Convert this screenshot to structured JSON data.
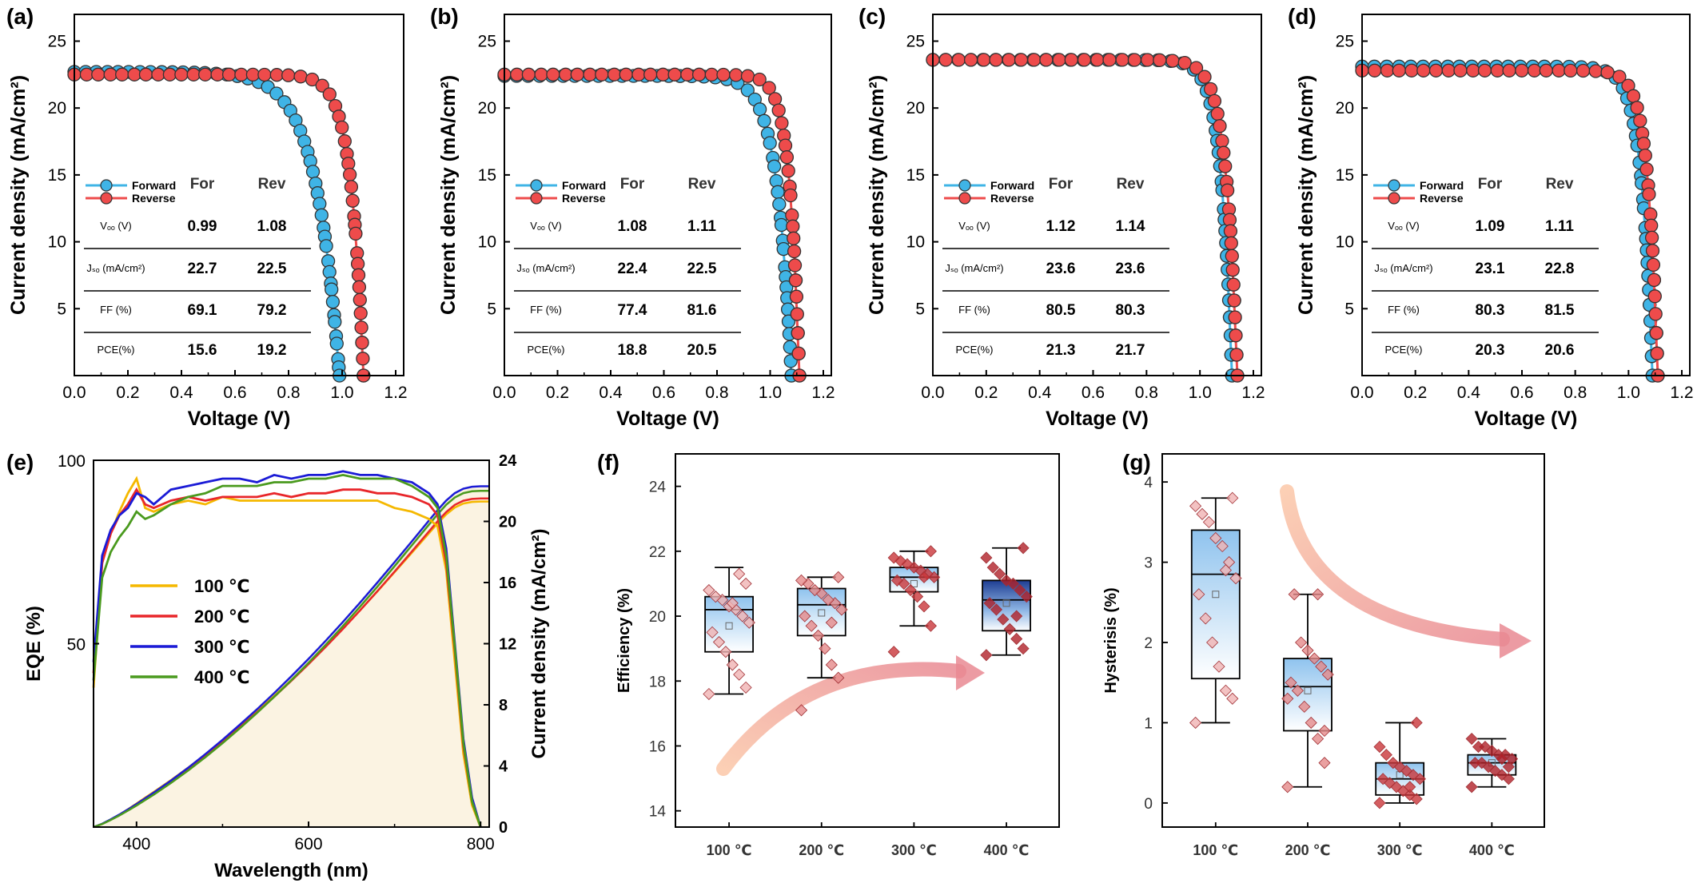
{
  "figure": {
    "panel_labels": [
      "(a)",
      "(b)",
      "(c)",
      "(d)",
      "(e)",
      "(f)",
      "(g)"
    ]
  },
  "colors": {
    "forward": "#3fb4e6",
    "reverse": "#ee4b4b",
    "t100": "#f5b800",
    "t200": "#e8262a",
    "t300": "#1b1bd6",
    "t400": "#4a9a1e",
    "eqe_fill": "#fbf3e2",
    "arrow": "#f3a090"
  },
  "jv_common": {
    "xlabel": "Voltage (V)",
    "ylabel": "Current density (mA/cm²)",
    "xticks": [
      "0.0",
      "0.2",
      "0.4",
      "0.6",
      "0.8",
      "1.0",
      "1.2"
    ],
    "yticks": [
      "5",
      "10",
      "15",
      "20",
      "25"
    ],
    "legend": [
      "Forward",
      "Reverse"
    ],
    "table_header": [
      "For",
      "Rev"
    ],
    "row_labels": [
      "Vₒₒ (V)",
      "Jₛₒ (mA/cm²)",
      "FF (%)",
      "PCE(%)"
    ]
  },
  "chart_data": [
    {
      "panel": "(a)",
      "type": "line",
      "xlim": [
        0,
        1.2
      ],
      "ylim": [
        0,
        27
      ],
      "series": [
        {
          "name": "Forward",
          "jsc": 22.7,
          "voc": 0.99,
          "ff": 69.1
        },
        {
          "name": "Reverse",
          "jsc": 22.5,
          "voc": 1.08,
          "ff": 79.2
        }
      ],
      "table": [
        [
          "0.99",
          "1.08"
        ],
        [
          "22.7",
          "22.5"
        ],
        [
          "69.1",
          "79.2"
        ],
        [
          "15.6",
          "19.2"
        ]
      ]
    },
    {
      "panel": "(b)",
      "type": "line",
      "xlim": [
        0,
        1.2
      ],
      "ylim": [
        0,
        27
      ],
      "series": [
        {
          "name": "Forward",
          "jsc": 22.4,
          "voc": 1.08,
          "ff": 77.4
        },
        {
          "name": "Reverse",
          "jsc": 22.5,
          "voc": 1.11,
          "ff": 81.6
        }
      ],
      "table": [
        [
          "1.08",
          "1.11"
        ],
        [
          "22.4",
          "22.5"
        ],
        [
          "77.4",
          "81.6"
        ],
        [
          "18.8",
          "20.5"
        ]
      ]
    },
    {
      "panel": "(c)",
      "type": "line",
      "xlim": [
        0,
        1.2
      ],
      "ylim": [
        0,
        27
      ],
      "series": [
        {
          "name": "Forward",
          "jsc": 23.6,
          "voc": 1.12,
          "ff": 80.5
        },
        {
          "name": "Reverse",
          "jsc": 23.6,
          "voc": 1.14,
          "ff": 80.3
        }
      ],
      "table": [
        [
          "1.12",
          "1.14"
        ],
        [
          "23.6",
          "23.6"
        ],
        [
          "80.5",
          "80.3"
        ],
        [
          "21.3",
          "21.7"
        ]
      ]
    },
    {
      "panel": "(d)",
      "type": "line",
      "xlim": [
        0,
        1.2
      ],
      "ylim": [
        0,
        27
      ],
      "series": [
        {
          "name": "Forward",
          "jsc": 23.1,
          "voc": 1.09,
          "ff": 80.3
        },
        {
          "name": "Reverse",
          "jsc": 22.8,
          "voc": 1.11,
          "ff": 81.5
        }
      ],
      "table": [
        [
          "1.09",
          "1.11"
        ],
        [
          "23.1",
          "22.8"
        ],
        [
          "80.3",
          "81.5"
        ],
        [
          "20.3",
          "20.6"
        ]
      ]
    },
    {
      "panel": "(e)",
      "type": "line",
      "xlabel": "Wavelength (nm)",
      "ylabel": "EQE (%)",
      "y2label": "Current density (mA/cm²)",
      "xlim": [
        350,
        810
      ],
      "ylim": [
        0,
        100
      ],
      "y2lim": [
        0,
        24
      ],
      "xticks": [
        "400",
        "600",
        "800"
      ],
      "yticks": [
        "50",
        "100"
      ],
      "y2ticks": [
        "0",
        "4",
        "8",
        "12",
        "16",
        "20",
        "24"
      ],
      "wavelength": [
        350,
        360,
        370,
        380,
        390,
        400,
        410,
        420,
        440,
        460,
        480,
        500,
        520,
        540,
        560,
        580,
        600,
        620,
        640,
        660,
        680,
        700,
        720,
        740,
        750,
        760,
        770,
        780,
        790,
        800
      ],
      "series": [
        {
          "name": "100 ℃",
          "eqe": [
            38,
            72,
            80,
            86,
            91,
            95,
            87,
            86,
            88,
            89,
            88,
            90,
            89,
            89,
            89,
            89,
            89,
            89,
            89,
            89,
            89,
            87,
            86,
            84,
            82,
            70,
            45,
            20,
            6,
            0
          ],
          "jsc_final": 21.3
        },
        {
          "name": "200 ℃",
          "eqe": [
            42,
            72,
            80,
            85,
            88,
            92,
            88,
            87,
            89,
            90,
            89,
            90,
            90,
            90,
            91,
            90,
            91,
            91,
            92,
            92,
            91,
            91,
            90,
            88,
            85,
            72,
            48,
            22,
            7,
            0
          ],
          "jsc_final": 21.5
        },
        {
          "name": "300 ℃",
          "eqe": [
            45,
            74,
            81,
            85,
            87,
            91,
            90,
            88,
            92,
            93,
            94,
            95,
            95,
            94,
            96,
            95,
            96,
            96,
            97,
            96,
            96,
            95,
            94,
            91,
            88,
            76,
            50,
            24,
            8,
            0
          ],
          "jsc_final": 22.3
        },
        {
          "name": "400 ℃",
          "eqe": [
            40,
            68,
            75,
            79,
            82,
            86,
            84,
            85,
            88,
            90,
            91,
            93,
            93,
            93,
            94,
            94,
            95,
            95,
            96,
            95,
            95,
            95,
            93,
            90,
            87,
            74,
            49,
            23,
            7,
            0
          ],
          "jsc_final": 22.0
        }
      ]
    },
    {
      "panel": "(f)",
      "type": "box",
      "ylabel": "Efficiency (%)",
      "ylim": [
        13.5,
        25
      ],
      "categories": [
        "100 ℃",
        "200 ℃",
        "300 ℃",
        "400 ℃"
      ],
      "yticks": [
        "14",
        "16",
        "18",
        "20",
        "22",
        "24"
      ],
      "boxes": [
        {
          "min": 17.6,
          "q1": 18.9,
          "median": 20.2,
          "q3": 20.6,
          "max": 21.5,
          "mean": 19.7
        },
        {
          "min": 18.1,
          "q1": 19.4,
          "median": 20.35,
          "q3": 20.85,
          "max": 21.2,
          "mean": 20.1
        },
        {
          "min": 19.7,
          "q1": 20.75,
          "median": 21.2,
          "q3": 21.5,
          "max": 22.0,
          "mean": 21.0
        },
        {
          "min": 18.8,
          "q1": 19.55,
          "median": 20.5,
          "q3": 21.1,
          "max": 22.1,
          "mean": 20.4
        }
      ],
      "points": [
        [
          17.6,
          17.8,
          18.2,
          18.5,
          18.9,
          19.2,
          19.5,
          19.8,
          20.0,
          20.2,
          20.3,
          20.5,
          20.6,
          20.8,
          21.0,
          21.3,
          20.4
        ],
        [
          17.1,
          18.1,
          18.5,
          19.0,
          19.4,
          19.7,
          20.0,
          20.2,
          20.4,
          20.5,
          20.7,
          20.8,
          21.0,
          21.1,
          21.2,
          19.8
        ],
        [
          18.9,
          19.7,
          20.3,
          20.6,
          20.8,
          21.0,
          21.1,
          21.2,
          21.3,
          21.4,
          21.5,
          21.6,
          21.7,
          21.8,
          22.0,
          21.2
        ],
        [
          18.8,
          19.0,
          19.3,
          19.6,
          19.9,
          20.2,
          20.4,
          20.6,
          20.8,
          21.0,
          21.1,
          21.3,
          21.5,
          21.8,
          22.1,
          20.0
        ]
      ]
    },
    {
      "panel": "(g)",
      "type": "box",
      "ylabel": "Hysterisis (%)",
      "ylim": [
        -0.3,
        4.35
      ],
      "categories": [
        "100 ℃",
        "200 ℃",
        "300 ℃",
        "400 ℃"
      ],
      "yticks": [
        "0",
        "1",
        "2",
        "3",
        "4"
      ],
      "boxes": [
        {
          "min": 1.0,
          "q1": 1.55,
          "median": 2.85,
          "q3": 3.4,
          "max": 3.8,
          "mean": 2.6
        },
        {
          "min": 0.2,
          "q1": 0.9,
          "median": 1.45,
          "q3": 1.8,
          "max": 2.6,
          "mean": 1.4
        },
        {
          "min": 0.0,
          "q1": 0.1,
          "median": 0.3,
          "q3": 0.5,
          "max": 1.0,
          "mean": 0.35
        },
        {
          "min": 0.2,
          "q1": 0.35,
          "median": 0.5,
          "q3": 0.6,
          "max": 0.8,
          "mean": 0.5
        }
      ],
      "points": [
        [
          1.0,
          1.3,
          1.4,
          1.7,
          2.0,
          2.3,
          2.6,
          2.8,
          3.0,
          3.2,
          3.3,
          3.5,
          3.6,
          3.7,
          3.8,
          2.9
        ],
        [
          0.2,
          0.5,
          0.8,
          1.0,
          1.2,
          1.4,
          1.5,
          1.6,
          1.7,
          1.8,
          1.9,
          2.0,
          2.6,
          1.3,
          0.9,
          2.6
        ],
        [
          0.0,
          0.05,
          0.1,
          0.15,
          0.2,
          0.25,
          0.3,
          0.3,
          0.35,
          0.4,
          0.45,
          0.5,
          0.6,
          0.7,
          1.0,
          0.2
        ],
        [
          0.2,
          0.3,
          0.35,
          0.4,
          0.45,
          0.5,
          0.5,
          0.55,
          0.6,
          0.6,
          0.65,
          0.7,
          0.7,
          0.8,
          0.45,
          0.55
        ]
      ]
    }
  ]
}
